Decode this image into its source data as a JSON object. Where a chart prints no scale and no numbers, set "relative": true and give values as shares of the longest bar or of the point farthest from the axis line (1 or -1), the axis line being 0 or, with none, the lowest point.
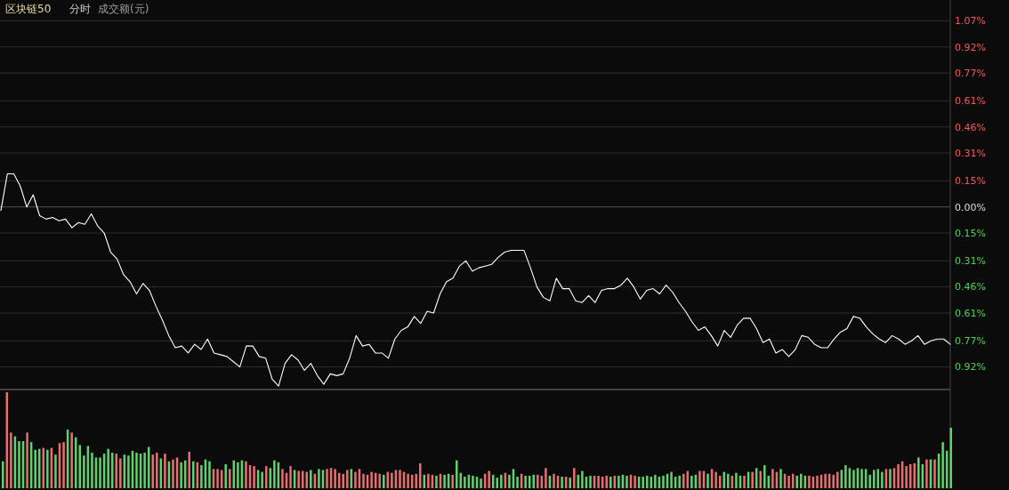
{
  "chart_data": [
    {
      "type": "line",
      "title": "区块链50",
      "annotations": [
        "分时"
      ],
      "categories": [
        null,
        null,
        null,
        null,
        null,
        null,
        null,
        null,
        null,
        null,
        null,
        null,
        null,
        null,
        null,
        null,
        null,
        null,
        null,
        null,
        null,
        null,
        null,
        null,
        null,
        null,
        null,
        null,
        null,
        null,
        null,
        null,
        null,
        null,
        null,
        null,
        null,
        null,
        null,
        null,
        null,
        null,
        null,
        null,
        null,
        null,
        null,
        null,
        null,
        null,
        null,
        null,
        null,
        null,
        null,
        null,
        null,
        null,
        null,
        null,
        null,
        null,
        null,
        null,
        null,
        null,
        null,
        null,
        null,
        null,
        null,
        null,
        null,
        null,
        null,
        null,
        null,
        null,
        null,
        null,
        null,
        null,
        null,
        null,
        null,
        null,
        null,
        null,
        null,
        null,
        null,
        null,
        null,
        null,
        null,
        null,
        null,
        null,
        null,
        null,
        null,
        null,
        null,
        null,
        null,
        null,
        null,
        null,
        null,
        null,
        null,
        null,
        null,
        null,
        null,
        null,
        null,
        null,
        null,
        null,
        null,
        null,
        null,
        null,
        null,
        null,
        null,
        null,
        null,
        null,
        null,
        null,
        null,
        null,
        null,
        null,
        null,
        null,
        null,
        null,
        null,
        null,
        null,
        null,
        null,
        null,
        null,
        null
      ],
      "ylim": [
        -1.05,
        1.19
      ],
      "yticks": [
        {
          "value": 1.07,
          "label": "1.07%"
        },
        {
          "value": 0.92,
          "label": "0.92%"
        },
        {
          "value": 0.77,
          "label": "0.77%"
        },
        {
          "value": 0.61,
          "label": "0.61%"
        },
        {
          "value": 0.46,
          "label": "0.46%"
        },
        {
          "value": 0.31,
          "label": "0.31%"
        },
        {
          "value": 0.15,
          "label": "0.15%"
        },
        {
          "value": 0,
          "label": "0.00%"
        },
        {
          "value": -0.15,
          "label": "0.15%"
        },
        {
          "value": -0.31,
          "label": "0.31%"
        },
        {
          "value": -0.46,
          "label": "0.46%"
        },
        {
          "value": -0.61,
          "label": "0.61%"
        },
        {
          "value": -0.77,
          "label": "0.77%"
        },
        {
          "value": -0.92,
          "label": "0.92%"
        }
      ],
      "grid": "y",
      "series": [
        {
          "color": "#ffffff",
          "values": [
            -0.02,
            0.19,
            0.19,
            0.12,
            0,
            0.07,
            -0.05,
            -0.07,
            -0.06,
            -0.08,
            -0.07,
            -0.12,
            -0.09,
            -0.1,
            -0.04,
            -0.11,
            -0.15,
            -0.26,
            -0.3,
            -0.39,
            -0.43,
            -0.5,
            -0.44,
            -0.48,
            -0.57,
            -0.65,
            -0.74,
            -0.81,
            -0.8,
            -0.84,
            -0.79,
            -0.82,
            -0.76,
            -0.84,
            -0.85,
            -0.86,
            -0.89,
            -0.92,
            -0.8,
            -0.8,
            -0.86,
            -0.87,
            -0.99,
            -1.03,
            -0.9,
            -0.85,
            -0.88,
            -0.94,
            -0.9,
            -0.97,
            -1.02,
            -0.96,
            -0.97,
            -0.96,
            -0.87,
            -0.74,
            -0.8,
            -0.79,
            -0.84,
            -0.84,
            -0.87,
            -0.76,
            -0.71,
            -0.69,
            -0.63,
            -0.67,
            -0.6,
            -0.61,
            -0.5,
            -0.43,
            -0.41,
            -0.34,
            -0.31,
            -0.37,
            -0.35,
            -0.34,
            -0.33,
            -0.29,
            -0.26,
            -0.25,
            -0.25,
            -0.25,
            -0.35,
            -0.46,
            -0.52,
            -0.54,
            -0.41,
            -0.47,
            -0.47,
            -0.54,
            -0.55,
            -0.51,
            -0.55,
            -0.48,
            -0.47,
            -0.47,
            -0.45,
            -0.41,
            -0.46,
            -0.53,
            -0.48,
            -0.47,
            -0.5,
            -0.45,
            -0.49,
            -0.55,
            -0.6,
            -0.66,
            -0.71,
            -0.69,
            -0.74,
            -0.8,
            -0.71,
            -0.75,
            -0.68,
            -0.64,
            -0.64,
            -0.7,
            -0.78,
            -0.76,
            -0.84,
            -0.82,
            -0.86,
            -0.82,
            -0.74,
            -0.75,
            -0.79,
            -0.81,
            -0.81,
            -0.76,
            -0.72,
            -0.7,
            -0.63,
            -0.64,
            -0.69,
            -0.73,
            -0.76,
            -0.78,
            -0.74,
            -0.76,
            -0.79,
            -0.77,
            -0.74,
            -0.79,
            -0.77,
            -0.76,
            -0.76,
            -0.79
          ]
        }
      ]
    },
    {
      "type": "bar",
      "title": "成交额(元)",
      "relative": true,
      "categories": [
        null,
        null,
        null,
        null,
        null,
        null,
        null,
        null,
        null,
        null,
        null,
        null,
        null,
        null,
        null,
        null,
        null,
        null,
        null,
        null,
        null,
        null,
        null,
        null,
        null,
        null,
        null,
        null,
        null,
        null,
        null,
        null,
        null,
        null,
        null,
        null,
        null,
        null,
        null,
        null,
        null,
        null,
        null,
        null,
        null,
        null,
        null,
        null,
        null,
        null,
        null,
        null,
        null,
        null,
        null,
        null,
        null,
        null,
        null,
        null,
        null,
        null,
        null,
        null,
        null,
        null,
        null,
        null,
        null,
        null,
        null,
        null,
        null,
        null,
        null,
        null,
        null,
        null,
        null,
        null,
        null,
        null,
        null,
        null,
        null,
        null,
        null,
        null,
        null,
        null,
        null,
        null,
        null,
        null,
        null,
        null,
        null,
        null,
        null,
        null,
        null,
        null,
        null,
        null,
        null,
        null,
        null,
        null,
        null,
        null,
        null,
        null,
        null,
        null,
        null,
        null,
        null,
        null,
        null,
        null,
        null,
        null,
        null,
        null,
        null,
        null,
        null,
        null,
        null,
        null,
        null,
        null,
        null,
        null,
        null,
        null,
        null,
        null,
        null,
        null,
        null,
        null,
        null,
        null,
        null,
        null,
        null,
        null,
        null,
        null,
        null,
        null,
        null,
        null,
        null,
        null,
        null,
        null,
        null,
        null,
        null,
        null,
        null,
        null,
        null,
        null,
        null,
        null,
        null,
        null,
        null,
        null,
        null,
        null,
        null,
        null,
        null,
        null,
        null,
        null,
        null,
        null,
        null,
        null,
        null,
        null,
        null,
        null,
        null,
        null,
        null,
        null,
        null,
        null,
        null,
        null,
        null,
        null,
        null,
        null,
        null,
        null,
        null,
        null,
        null,
        null,
        null,
        null,
        null,
        null,
        null,
        null,
        null,
        null,
        null,
        null,
        null,
        null,
        null,
        null,
        null,
        null,
        null,
        null,
        null,
        null,
        null,
        null,
        null,
        null,
        null,
        null,
        null,
        null,
        null
      ],
      "values": [
        0.28,
        1,
        0.58,
        0.54,
        0.49,
        0.49,
        0.58,
        0.48,
        0.4,
        0.41,
        0.42,
        0.4,
        0.42,
        0.35,
        0.47,
        0.48,
        0.61,
        0.58,
        0.53,
        0.45,
        0.34,
        0.44,
        0.37,
        0.32,
        0.32,
        0.36,
        0.41,
        0.37,
        0.36,
        0.31,
        0.35,
        0.34,
        0.39,
        0.37,
        0.36,
        0.37,
        0.43,
        0.35,
        0.37,
        0.31,
        0.36,
        0.28,
        0.3,
        0.32,
        0.27,
        0.29,
        0.38,
        0.28,
        0.27,
        0.24,
        0.3,
        0.28,
        0.2,
        0.2,
        0.19,
        0.25,
        0.2,
        0.29,
        0.27,
        0.29,
        0.28,
        0.24,
        0.23,
        0.19,
        0.17,
        0.23,
        0.21,
        0.29,
        0.27,
        0.2,
        0.16,
        0.23,
        0.19,
        0.18,
        0.18,
        0.17,
        0.19,
        0.15,
        0.2,
        0.19,
        0.2,
        0.21,
        0.2,
        0.16,
        0.15,
        0.19,
        0.2,
        0.17,
        0.2,
        0.15,
        0.14,
        0.17,
        0.16,
        0.15,
        0.14,
        0.17,
        0.16,
        0.19,
        0.19,
        0.17,
        0.15,
        0.14,
        0.15,
        0.26,
        0.14,
        0.15,
        0.14,
        0.13,
        0.15,
        0.14,
        0.15,
        0.14,
        0.29,
        0.16,
        0.12,
        0.14,
        0.13,
        0.12,
        0.1,
        0.15,
        0.18,
        0.14,
        0.11,
        0.14,
        0.16,
        0.14,
        0.2,
        0.12,
        0.15,
        0.13,
        0.13,
        0.14,
        0.14,
        0.13,
        0.21,
        0.13,
        0.15,
        0.13,
        0.12,
        0.12,
        0.11,
        0.21,
        0.14,
        0.18,
        0.12,
        0.13,
        0.13,
        0.13,
        0.12,
        0.13,
        0.12,
        0.13,
        0.13,
        0.14,
        0.13,
        0.14,
        0.13,
        0.12,
        0.12,
        0.13,
        0.12,
        0.14,
        0.12,
        0.13,
        0.15,
        0.17,
        0.12,
        0.13,
        0.15,
        0.18,
        0.13,
        0.14,
        0.18,
        0.18,
        0.15,
        0.2,
        0.17,
        0.13,
        0.17,
        0.15,
        0.13,
        0.16,
        0.13,
        0.13,
        0.17,
        0.17,
        0.21,
        0.18,
        0.24,
        0.13,
        0.2,
        0.17,
        0.2,
        0.15,
        0.13,
        0.15,
        0.13,
        0.15,
        0.13,
        0.13,
        0.12,
        0.13,
        0.14,
        0.15,
        0.15,
        0.14,
        0.17,
        0.19,
        0.24,
        0.21,
        0.19,
        0.21,
        0.2,
        0.2,
        0.14,
        0.19,
        0.2,
        0.17,
        0.2,
        0.2,
        0.21,
        0.25,
        0.28,
        0.23,
        0.25,
        0.26,
        0.32,
        0.25,
        0.3,
        0.3,
        0.3,
        0.36,
        0.48,
        0.39,
        0.63
      ],
      "colors": [
        "#63d06e",
        "#e86f6f",
        "#e86f6f",
        "#63d06e",
        "#63d06e",
        "#63d06e",
        "#e86f6f",
        "#63d06e",
        "#63d06e",
        "#63d06e",
        "#e86f6f",
        "#63d06e",
        "#e86f6f",
        "#63d06e",
        "#e86f6f",
        "#e86f6f",
        "#63d06e",
        "#e86f6f",
        "#63d06e",
        "#63d06e",
        "#63d06e",
        "#63d06e",
        "#63d06e",
        "#63d06e",
        "#63d06e",
        "#63d06e",
        "#63d06e",
        "#63d06e",
        "#e86f6f",
        "#e86f6f",
        "#63d06e",
        "#63d06e",
        "#63d06e",
        "#63d06e",
        "#63d06e",
        "#63d06e",
        "#63d06e",
        "#e86f6f",
        "#e86f6f",
        "#63d06e",
        "#e86f6f",
        "#63d06e",
        "#e86f6f",
        "#e86f6f",
        "#63d06e",
        "#63d06e",
        "#e86f6f",
        "#63d06e",
        "#e86f6f",
        "#63d06e",
        "#63d06e",
        "#63d06e",
        "#e86f6f",
        "#e86f6f",
        "#e86f6f",
        "#63d06e",
        "#e86f6f",
        "#63d06e",
        "#63d06e",
        "#63d06e",
        "#e86f6f",
        "#e86f6f",
        "#e86f6f",
        "#63d06e",
        "#63d06e",
        "#e86f6f",
        "#63d06e",
        "#63d06e",
        "#63d06e",
        "#e86f6f",
        "#e86f6f",
        "#e86f6f",
        "#63d06e",
        "#e86f6f",
        "#e86f6f",
        "#e86f6f",
        "#63d06e",
        "#e86f6f",
        "#63d06e",
        "#63d06e",
        "#e86f6f",
        "#e86f6f",
        "#e86f6f",
        "#e86f6f",
        "#e86f6f",
        "#e86f6f",
        "#63d06e",
        "#e86f6f",
        "#e86f6f",
        "#e86f6f",
        "#e86f6f",
        "#e86f6f",
        "#e86f6f",
        "#e86f6f",
        "#63d06e",
        "#e86f6f",
        "#e86f6f",
        "#e86f6f",
        "#e86f6f",
        "#e86f6f",
        "#e86f6f",
        "#e86f6f",
        "#e86f6f",
        "#e86f6f",
        "#63d06e",
        "#e86f6f",
        "#e86f6f",
        "#63d06e",
        "#e86f6f",
        "#63d06e",
        "#63d06e",
        "#e86f6f",
        "#63d06e",
        "#63d06e",
        "#63d06e",
        "#63d06e",
        "#63d06e",
        "#63d06e",
        "#63d06e",
        "#e86f6f",
        "#e86f6f",
        "#63d06e",
        "#63d06e",
        "#63d06e",
        "#e86f6f",
        "#63d06e",
        "#63d06e",
        "#63d06e",
        "#e86f6f",
        "#63d06e",
        "#63d06e",
        "#63d06e",
        "#e86f6f",
        "#e86f6f",
        "#e86f6f",
        "#63d06e",
        "#e86f6f",
        "#e86f6f",
        "#63d06e",
        "#e86f6f",
        "#63d06e",
        "#e86f6f",
        "#63d06e",
        "#63d06e",
        "#63d06e",
        "#63d06e",
        "#e86f6f",
        "#e86f6f",
        "#e86f6f",
        "#e86f6f",
        "#63d06e",
        "#e86f6f",
        "#63d06e",
        "#63d06e",
        "#63d06e",
        "#e86f6f",
        "#e86f6f",
        "#63d06e",
        "#63d06e",
        "#63d06e",
        "#63d06e",
        "#63d06e",
        "#63d06e",
        "#63d06e",
        "#63d06e",
        "#63d06e",
        "#63d06e",
        "#63d06e",
        "#e86f6f",
        "#e86f6f",
        "#63d06e",
        "#63d06e",
        "#e86f6f",
        "#e86f6f",
        "#63d06e",
        "#e86f6f",
        "#e86f6f",
        "#e86f6f",
        "#63d06e",
        "#63d06e",
        "#e86f6f",
        "#63d06e",
        "#63d06e",
        "#e86f6f",
        "#63d06e",
        "#e86f6f",
        "#63d06e",
        "#e86f6f",
        "#63d06e",
        "#63d06e",
        "#e86f6f",
        "#e86f6f",
        "#63d06e",
        "#e86f6f",
        "#e86f6f",
        "#e86f6f",
        "#63d06e",
        "#63d06e",
        "#63d06e",
        "#e86f6f",
        "#e86f6f",
        "#e86f6f",
        "#e86f6f",
        "#e86f6f",
        "#e86f6f",
        "#e86f6f",
        "#e86f6f",
        "#63d06e",
        "#63d06e",
        "#63d06e",
        "#63d06e",
        "#63d06e",
        "#63d06e",
        "#63d06e",
        "#63d06e",
        "#63d06e",
        "#63d06e",
        "#63d06e",
        "#e86f6f",
        "#63d06e",
        "#e86f6f",
        "#e86f6f",
        "#e86f6f",
        "#e86f6f",
        "#e86f6f",
        "#e86f6f",
        "#63d06e",
        "#63d06e",
        "#e86f6f",
        "#63d06e",
        "#e86f6f",
        "#63d06e",
        "#63d06e",
        "#63d06e",
        "#63d06e"
      ]
    }
  ]
}
